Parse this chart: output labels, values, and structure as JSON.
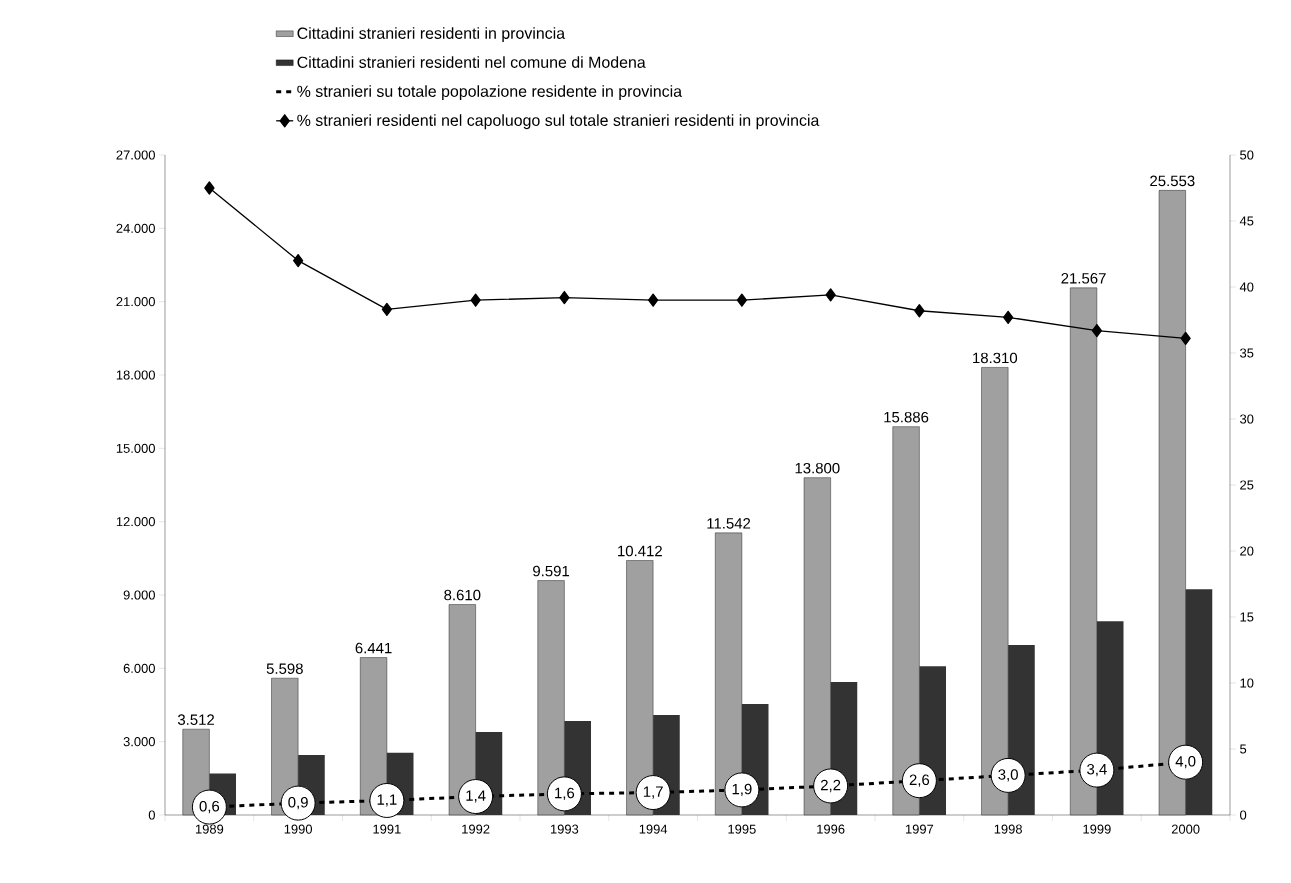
{
  "chart_data": {
    "type": "bar",
    "categories": [
      "1989",
      "1990",
      "1991",
      "1992",
      "1993",
      "1994",
      "1995",
      "1996",
      "1997",
      "1998",
      "1999",
      "2000"
    ],
    "series": [
      {
        "name": "Cittadini stranieri residenti in provincia",
        "type": "bar",
        "color": "#a0a0a0",
        "values": [
          3512,
          5598,
          6441,
          8610,
          9591,
          10412,
          11542,
          13800,
          15886,
          18310,
          21567,
          25553
        ],
        "value_labels": [
          "3.512",
          "5.598",
          "6.441",
          "8.610",
          "9.591",
          "10.412",
          "11.542",
          "13.800",
          "15.886",
          "18.310",
          "21.567",
          "25.553"
        ]
      },
      {
        "name": "Cittadini stranieri residenti nel comune di Modena",
        "type": "bar",
        "color": "#333333",
        "values": [
          1700,
          2450,
          2550,
          3400,
          3850,
          4090,
          4540,
          5440,
          6090,
          6950,
          7930,
          9240
        ]
      },
      {
        "name": "% stranieri su totale popolazione residente in provincia",
        "type": "line",
        "axis": "y2",
        "color": "#000000",
        "marker": "circle",
        "line_style": "dotted",
        "values": [
          0.6,
          0.9,
          1.1,
          1.4,
          1.6,
          1.7,
          1.9,
          2.2,
          2.6,
          3.0,
          3.4,
          4.0
        ],
        "value_labels": [
          "0,6",
          "0,9",
          "1,1",
          "1,4",
          "1,6",
          "1,7",
          "1,9",
          "2,2",
          "2,6",
          "3,0",
          "3,4",
          "4,0"
        ]
      },
      {
        "name": "% stranieri residenti nel capoluogo sul totale stranieri residenti in provincia",
        "type": "line",
        "axis": "y2",
        "color": "#000000",
        "marker": "diamond",
        "line_style": "solid",
        "values": [
          47.5,
          42.0,
          38.3,
          39.0,
          39.2,
          39.0,
          39.0,
          39.4,
          38.2,
          37.7,
          36.7,
          36.1
        ]
      }
    ],
    "ylim": [
      0,
      27000
    ],
    "yticks": [
      0,
      {
        "value": 3000,
        "label": "3.000"
      },
      {
        "value": 6000,
        "label": "6.000"
      },
      {
        "value": 9000,
        "label": "9.000"
      },
      {
        "value": 12000,
        "label": "12.000"
      },
      {
        "value": 15000,
        "label": "15.000"
      },
      {
        "value": 18000,
        "label": "18.000"
      },
      {
        "value": 21000,
        "label": "21.000"
      },
      {
        "value": 24000,
        "label": "24.000"
      },
      {
        "value": 27000,
        "label": "27.000"
      }
    ],
    "y2lim": [
      0,
      50
    ],
    "y2ticks": [
      0,
      5,
      10,
      15,
      20,
      25,
      30,
      35,
      40,
      45,
      50
    ],
    "legend": "top",
    "grid": false
  }
}
